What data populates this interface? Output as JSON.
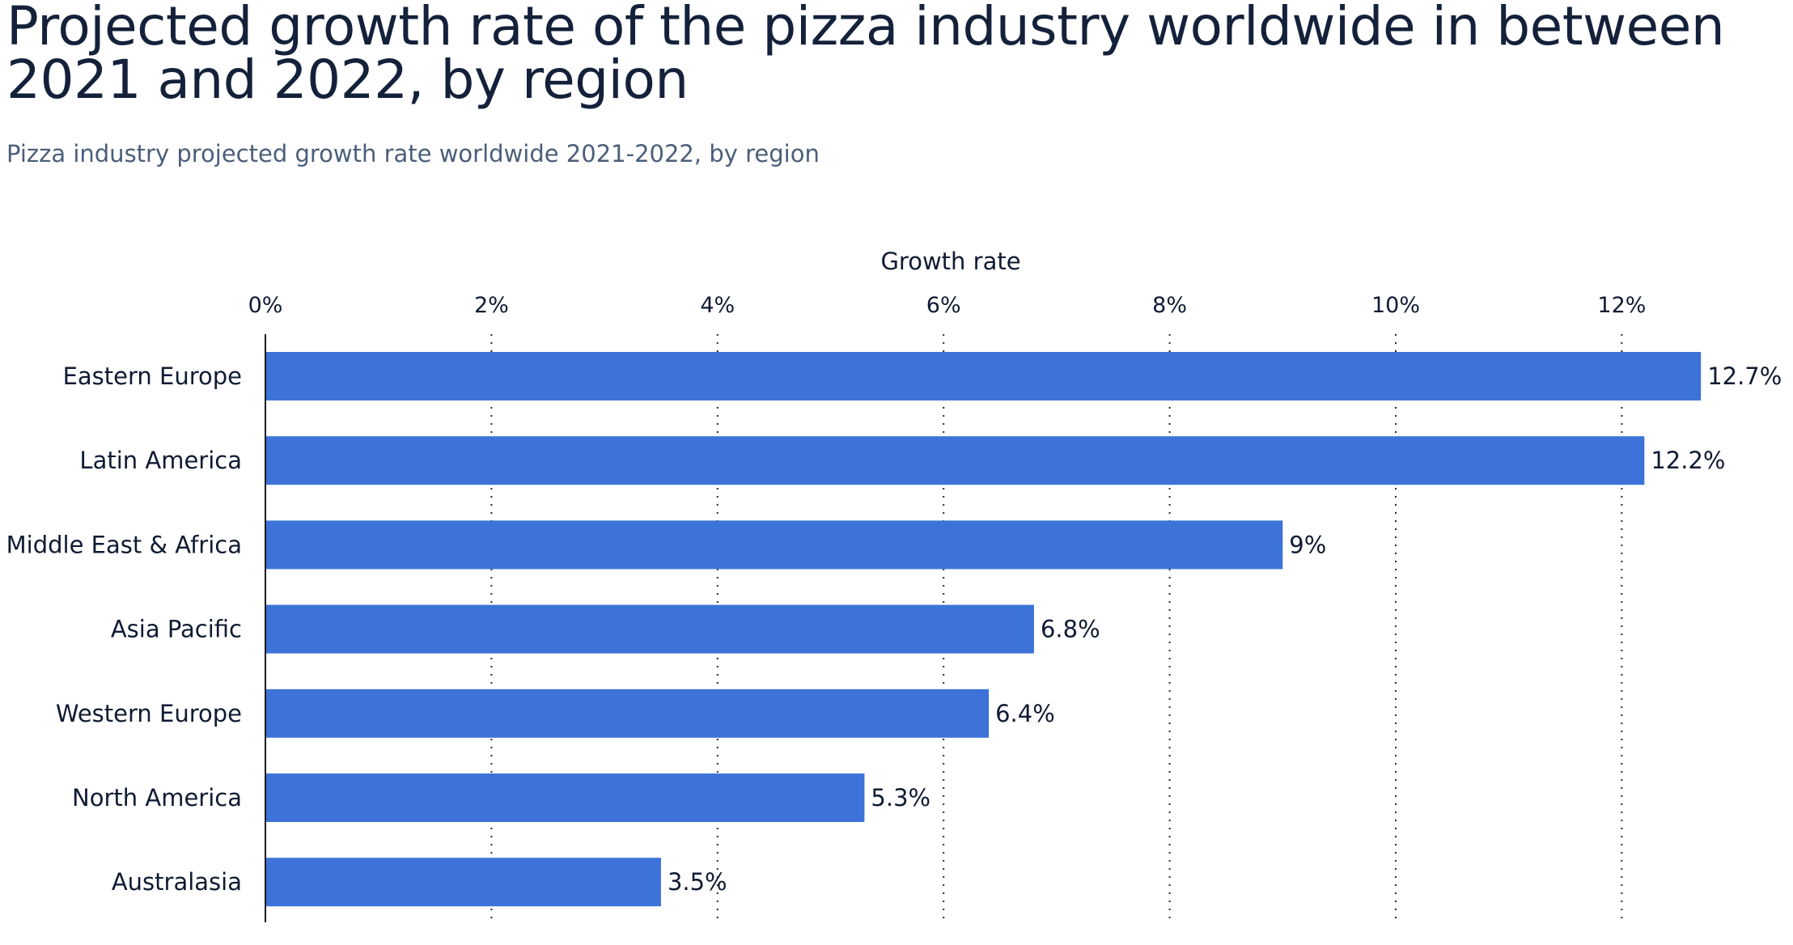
{
  "colors": {
    "bar": "#3d73d8",
    "grid": "#2a2a2a",
    "text": "#0f1b33"
  },
  "chart_data": {
    "type": "bar",
    "orientation": "horizontal",
    "title": "Projected growth rate of the pizza industry worldwide in between 2021 and 2022, by region",
    "subtitle": "Pizza industry projected growth rate worldwide 2021-2022, by region",
    "xlabel": "Growth rate",
    "ylabel": "",
    "xlim": [
      0,
      13.2
    ],
    "ticks": [
      0,
      2,
      4,
      6,
      8,
      10,
      12
    ],
    "tick_labels": [
      "0%",
      "2%",
      "4%",
      "6%",
      "8%",
      "10%",
      "12%"
    ],
    "grid": true,
    "categories": [
      "Eastern Europe",
      "Latin America",
      "Middle East & Africa",
      "Asia Pacific",
      "Western Europe",
      "North America",
      "Australasia"
    ],
    "values": [
      12.7,
      12.2,
      9,
      6.8,
      6.4,
      5.3,
      3.5
    ],
    "value_labels": [
      "12.7%",
      "12.2%",
      "9%",
      "6.8%",
      "6.4%",
      "5.3%",
      "3.5%"
    ]
  }
}
